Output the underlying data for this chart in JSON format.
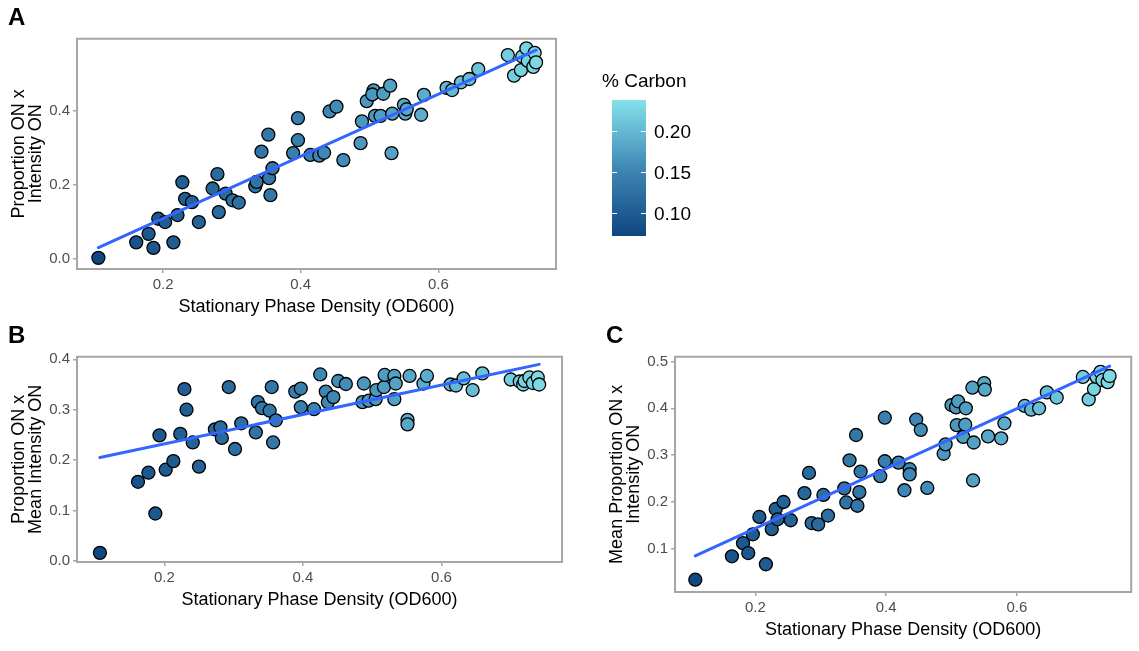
{
  "chart_data": [
    {
      "type": "scatter",
      "title": "A",
      "xlabel": "Stationary Phase Density (OD600)",
      "ylabel": "Proportion ON x\nIntensity ON",
      "clabel": "% Carbon",
      "clim": [
        0.073,
        0.239
      ],
      "cticks": [
        {
          "value": 0.1,
          "label": "0.10"
        },
        {
          "value": 0.15,
          "label": "0.15"
        },
        {
          "value": 0.2,
          "label": "0.20"
        }
      ],
      "xlim": [
        0.075,
        0.771
      ],
      "xticks": [
        0.2,
        0.4,
        0.6
      ],
      "ylim": [
        -0.028,
        0.596
      ],
      "yticks": [
        {
          "value": 0,
          "label": "0.0"
        },
        0.2,
        0.4
      ],
      "marker": "circle",
      "grid": false,
      "series": [
        {
          "type": "scatter",
          "x": [
            0.106,
            0.161,
            0.179,
            0.186,
            0.193,
            0.203,
            0.215,
            0.221,
            0.228,
            0.232,
            0.242,
            0.252,
            0.272,
            0.279,
            0.281,
            0.291,
            0.301,
            0.31,
            0.334,
            0.336,
            0.343,
            0.353,
            0.354,
            0.356,
            0.359,
            0.389,
            0.396,
            0.396,
            0.414,
            0.427,
            0.434,
            0.442,
            0.452,
            0.462,
            0.487,
            0.489,
            0.496,
            0.506,
            0.504,
            0.508,
            0.516,
            0.52,
            0.53,
            0.532,
            0.533,
            0.55,
            0.552,
            0.554,
            0.575,
            0.579,
            0.612,
            0.62,
            0.633,
            0.645,
            0.658,
            0.701,
            0.71,
            0.72,
            0.722,
            0.728,
            0.73,
            0.74,
            0.738,
            0.742
          ],
          "values": [
            0.002,
            0.044,
            0.067,
            0.029,
            0.108,
            0.099,
            0.044,
            0.118,
            0.207,
            0.162,
            0.153,
            0.099,
            0.19,
            0.229,
            0.126,
            0.176,
            0.158,
            0.152,
            0.196,
            0.208,
            0.29,
            0.336,
            0.218,
            0.172,
            0.245,
            0.286,
            0.381,
            0.321,
            0.281,
            0.279,
            0.287,
            0.399,
            0.412,
            0.267,
            0.313,
            0.372,
            0.427,
            0.456,
            0.445,
            0.387,
            0.387,
            0.447,
            0.469,
            0.286,
            0.393,
            0.417,
            0.393,
            0.405,
            0.39,
            0.444,
            0.463,
            0.457,
            0.478,
            0.487,
            0.514,
            0.552,
            0.496,
            0.511,
            0.548,
            0.57,
            0.536,
            0.558,
            0.52,
            0.532
          ],
          "colors": [
            "#104881",
            "#19538b",
            "#1c588e",
            "#1c588e",
            "#1c588e",
            "#1f5c91",
            "#1f5c91",
            "#225f94",
            "#225f94",
            "#225f94",
            "#246398",
            "#246398",
            "#27679b",
            "#2a6b9e",
            "#2a6b9e",
            "#2a6b9e",
            "#2d6fa1",
            "#2d6fa1",
            "#3073a4",
            "#3073a4",
            "#3377a8",
            "#3377a8",
            "#3377a8",
            "#3377a8",
            "#3377a8",
            "#397fae",
            "#397fae",
            "#397fae",
            "#3c83b1",
            "#3e87b4",
            "#3e87b4",
            "#3e87b4",
            "#428cb8",
            "#428cb8",
            "#4b97be",
            "#4b97be",
            "#4b97be",
            "#4b97be",
            "#4b97be",
            "#4b97be",
            "#4f9dc1",
            "#4f9dc1",
            "#53a2c4",
            "#53a2c4",
            "#53a2c4",
            "#57a8c8",
            "#57a8c8",
            "#57a8c8",
            "#5badcb",
            "#5badcb",
            "#64b8d1",
            "#64b8d1",
            "#68bdd4",
            "#68bdd4",
            "#6cc3d7",
            "#74cdde",
            "#74cdde",
            "#78d3e1",
            "#78d3e1",
            "#78d3e1",
            "#78d3e1",
            "#7dd8e4",
            "#7dd8e4",
            "#7dd8e4"
          ]
        },
        {
          "type": "line",
          "color": "#3366ff",
          "marker": "none",
          "x": [
            0.106,
            0.742
          ],
          "values": [
            0.03,
            0.565
          ]
        }
      ]
    },
    {
      "type": "scatter",
      "title": "B",
      "xlabel": "Stationary Phase Density (OD600)",
      "ylabel": "Proportion ON x\nMean Intensity ON",
      "xlim": [
        0.074,
        0.774
      ],
      "xticks": [
        0.2,
        0.4,
        0.6
      ],
      "ylim": [
        -0.002,
        0.405
      ],
      "yticks": [
        {
          "value": 0,
          "label": "0.0"
        },
        0.1,
        0.2,
        0.3,
        0.4
      ],
      "marker": "circle",
      "grid": false,
      "series": [
        {
          "type": "scatter",
          "x": [
            0.107,
            0.162,
            0.177,
            0.187,
            0.193,
            0.202,
            0.213,
            0.223,
            0.229,
            0.232,
            0.241,
            0.25,
            0.273,
            0.281,
            0.283,
            0.293,
            0.302,
            0.311,
            0.332,
            0.335,
            0.341,
            0.352,
            0.355,
            0.357,
            0.361,
            0.389,
            0.397,
            0.397,
            0.416,
            0.425,
            0.433,
            0.436,
            0.444,
            0.451,
            0.462,
            0.486,
            0.488,
            0.495,
            0.505,
            0.506,
            0.517,
            0.518,
            0.532,
            0.532,
            0.534,
            0.551,
            0.551,
            0.554,
            0.574,
            0.579,
            0.613,
            0.621,
            0.632,
            0.645,
            0.659,
            0.7,
            0.713,
            0.718,
            0.72,
            0.727,
            0.732,
            0.739,
            0.741
          ],
          "values": [
            0.016,
            0.157,
            0.175,
            0.094,
            0.249,
            0.181,
            0.198,
            0.252,
            0.341,
            0.3,
            0.235,
            0.187,
            0.261,
            0.265,
            0.244,
            0.345,
            0.222,
            0.273,
            0.255,
            0.315,
            0.303,
            0.298,
            0.345,
            0.235,
            0.279,
            0.336,
            0.342,
            0.305,
            0.301,
            0.37,
            0.336,
            0.315,
            0.325,
            0.357,
            0.351,
            0.315,
            0.352,
            0.318,
            0.321,
            0.339,
            0.345,
            0.369,
            0.367,
            0.321,
            0.352,
            0.28,
            0.271,
            0.367,
            0.352,
            0.367,
            0.35,
            0.348,
            0.362,
            0.339,
            0.372,
            0.36,
            0.356,
            0.35,
            0.357,
            0.364,
            0.353,
            0.364,
            0.35
          ],
          "colors": [
            "#104881",
            "#19538b",
            "#1c588e",
            "#1c588e",
            "#1c588e",
            "#1f5c91",
            "#1f5c91",
            "#225f94",
            "#225f94",
            "#225f94",
            "#246398",
            "#246398",
            "#27679b",
            "#2a6b9e",
            "#2a6b9e",
            "#2a6b9e",
            "#2d6fa1",
            "#2d6fa1",
            "#3073a4",
            "#3073a4",
            "#3377a8",
            "#3377a8",
            "#3377a8",
            "#3377a8",
            "#3377a8",
            "#397fae",
            "#397fae",
            "#397fae",
            "#3c83b1",
            "#3e87b4",
            "#3e87b4",
            "#3e87b4",
            "#3e87b4",
            "#428cb8",
            "#428cb8",
            "#4b97be",
            "#4b97be",
            "#4b97be",
            "#4b97be",
            "#4b97be",
            "#4f9dc1",
            "#4f9dc1",
            "#53a2c4",
            "#53a2c4",
            "#53a2c4",
            "#57a8c8",
            "#57a8c8",
            "#57a8c8",
            "#5badcb",
            "#5badcb",
            "#64b8d1",
            "#64b8d1",
            "#68bdd4",
            "#68bdd4",
            "#6cc3d7",
            "#74cdde",
            "#74cdde",
            "#78d3e1",
            "#78d3e1",
            "#78d3e1",
            "#78d3e1",
            "#7dd8e4",
            "#7dd8e4"
          ]
        },
        {
          "type": "line",
          "color": "#3366ff",
          "marker": "none",
          "x": [
            0.107,
            0.741
          ],
          "values": [
            0.205,
            0.39
          ]
        }
      ]
    },
    {
      "type": "scatter",
      "title": "C",
      "xlabel": "Stationary Phase Density (OD600)",
      "ylabel": "Mean Proportion ON x\nIntensity ON",
      "xlim": [
        0.077,
        0.775
      ],
      "xticks": [
        0.2,
        0.4,
        0.6
      ],
      "ylim": [
        0.008,
        0.51
      ],
      "yticks": [
        0.1,
        0.2,
        0.3,
        0.4,
        0.5
      ],
      "marker": "circle",
      "grid": false,
      "series": [
        {
          "type": "scatter",
          "x": [
            0.108,
            0.164,
            0.181,
            0.189,
            0.196,
            0.206,
            0.216,
            0.225,
            0.231,
            0.234,
            0.243,
            0.254,
            0.275,
            0.282,
            0.286,
            0.296,
            0.304,
            0.311,
            0.336,
            0.339,
            0.344,
            0.354,
            0.356,
            0.359,
            0.361,
            0.391,
            0.398,
            0.398,
            0.419,
            0.428,
            0.436,
            0.436,
            0.446,
            0.453,
            0.463,
            0.488,
            0.491,
            0.5,
            0.507,
            0.51,
            0.508,
            0.518,
            0.521,
            0.522,
            0.532,
            0.533,
            0.534,
            0.55,
            0.551,
            0.556,
            0.576,
            0.581,
            0.612,
            0.622,
            0.634,
            0.646,
            0.661,
            0.701,
            0.71,
            0.718,
            0.722,
            0.728,
            0.731,
            0.739,
            0.742
          ],
          "values": [
            0.034,
            0.084,
            0.112,
            0.091,
            0.131,
            0.168,
            0.067,
            0.142,
            0.185,
            0.163,
            0.2,
            0.161,
            0.219,
            0.262,
            0.155,
            0.152,
            0.215,
            0.171,
            0.229,
            0.199,
            0.289,
            0.343,
            0.192,
            0.221,
            0.265,
            0.255,
            0.38,
            0.287,
            0.284,
            0.225,
            0.27,
            0.259,
            0.376,
            0.354,
            0.23,
            0.303,
            0.323,
            0.407,
            0.402,
            0.415,
            0.364,
            0.339,
            0.365,
            0.4,
            0.444,
            0.246,
            0.327,
            0.454,
            0.44,
            0.34,
            0.336,
            0.368,
            0.405,
            0.397,
            0.4,
            0.434,
            0.423,
            0.467,
            0.419,
            0.441,
            0.467,
            0.478,
            0.46,
            0.456,
            0.469
          ],
          "colors": [
            "#104881",
            "#19538b",
            "#1c588e",
            "#1c588e",
            "#1f5c91",
            "#1f5c91",
            "#1f5c91",
            "#225f94",
            "#225f94",
            "#225f94",
            "#246398",
            "#246398",
            "#27679b",
            "#2a6b9e",
            "#2a6b9e",
            "#2a6b9e",
            "#2d6fa1",
            "#2d6fa1",
            "#3073a4",
            "#3073a4",
            "#3377a8",
            "#3377a8",
            "#3377a8",
            "#3377a8",
            "#3377a8",
            "#397fae",
            "#397fae",
            "#397fae",
            "#3c83b1",
            "#3e87b4",
            "#3e87b4",
            "#3e87b4",
            "#3e87b4",
            "#428cb8",
            "#428cb8",
            "#4b97be",
            "#4b97be",
            "#4b97be",
            "#4b97be",
            "#4f9dc1",
            "#4b97be",
            "#4f9dc1",
            "#4f9dc1",
            "#4f9dc1",
            "#53a2c4",
            "#53a2c4",
            "#53a2c4",
            "#57a8c8",
            "#57a8c8",
            "#57a8c8",
            "#5badcb",
            "#5badcb",
            "#64b8d1",
            "#64b8d1",
            "#68bdd4",
            "#68bdd4",
            "#6cc3d7",
            "#74cdde",
            "#74cdde",
            "#78d3e1",
            "#78d3e1",
            "#78d3e1",
            "#78d3e1",
            "#7dd8e4",
            "#7dd8e4"
          ]
        },
        {
          "type": "line",
          "color": "#3366ff",
          "marker": "none",
          "x": [
            0.108,
            0.742
          ],
          "values": [
            0.085,
            0.49
          ]
        }
      ]
    }
  ]
}
